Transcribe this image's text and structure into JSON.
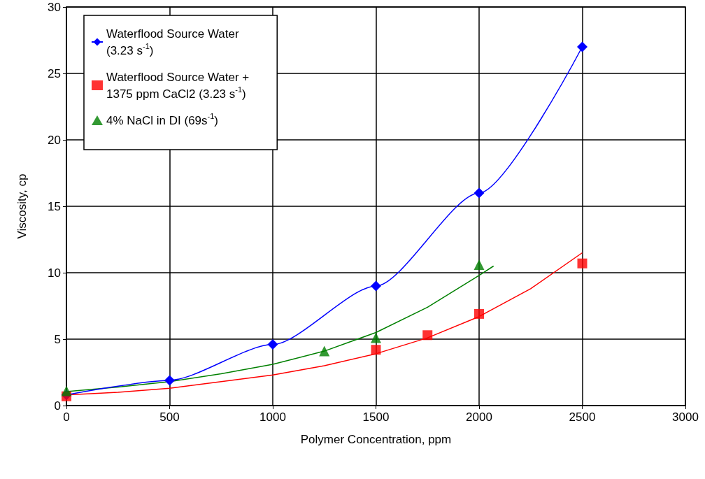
{
  "chart_data": {
    "type": "scatter",
    "xlabel": "Polymer Concentration, ppm",
    "ylabel": "Viscosity, cp",
    "xlim": [
      0,
      3000
    ],
    "xticks": [
      0,
      500,
      1000,
      1500,
      2000,
      2500,
      3000
    ],
    "ylim": [
      0,
      30
    ],
    "yticks": [
      0,
      5,
      10,
      15,
      20,
      25,
      30
    ],
    "grid": true,
    "legend": "top left",
    "series": [
      {
        "name": "Waterflood Source Water\n(3.23 s$^{-1}$)",
        "type": "line",
        "marker": "diamond",
        "color": "#0000ff",
        "x": [
          0,
          500,
          1000,
          1500,
          2000,
          2500
        ],
        "values": [
          0.8,
          1.9,
          4.6,
          9,
          16,
          27
        ]
      },
      {
        "name": "Waterflood Source Water +\n1375 ppm CaCl2 (3.23 s$^{-1}$)",
        "marker": "square",
        "color": "#ff0000",
        "x": [
          0,
          1500,
          1750,
          2000,
          2500
        ],
        "values": [
          0.7,
          4.2,
          5.3,
          6.9,
          10.7
        ]
      },
      {
        "name": "4% NaCl in DI (69s$^{-1}$)",
        "marker": "triangle",
        "color": "#008000",
        "x": [
          0,
          1250,
          1500,
          2000
        ],
        "values": [
          1.1,
          4.1,
          5.1,
          10.6
        ]
      },
      {
        "type": "line",
        "marker": "none",
        "color": "#ff0000",
        "x": [
          0,
          250,
          500,
          750,
          1000,
          1250,
          1500,
          1750,
          2000,
          2250,
          2500
        ],
        "values": [
          0.8,
          1.0,
          1.3,
          1.8,
          2.3,
          3.0,
          3.9,
          5.1,
          6.7,
          8.8,
          11.5
        ]
      },
      {
        "type": "line",
        "marker": "none",
        "color": "#008000",
        "x": [
          0,
          250,
          500,
          750,
          1000,
          1250,
          1500,
          1750,
          2000,
          2070
        ],
        "values": [
          1.05,
          1.4,
          1.8,
          2.4,
          3.1,
          4.1,
          5.5,
          7.4,
          9.8,
          10.5
        ]
      }
    ]
  }
}
